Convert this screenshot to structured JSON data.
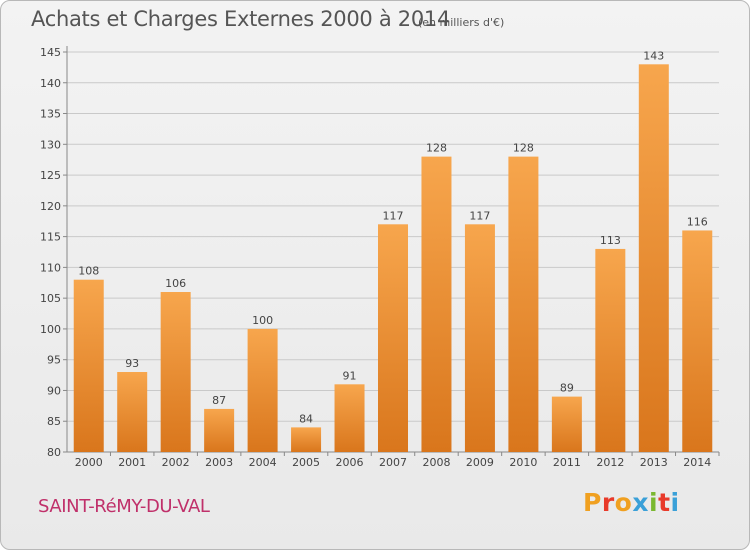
{
  "header": {
    "title": "Achats et Charges Externes 2000 à 2014",
    "subtitle": "(en milliers d'€)"
  },
  "footer": {
    "commune": "SAINT-RéMY-DU-VAL",
    "logo_text": "Proxiti",
    "logo_colors": [
      "#f0a020",
      "#e83a2a",
      "#f0a020",
      "#3aa0d8",
      "#7ab830",
      "#e83a2a",
      "#3aa0d8"
    ]
  },
  "chart_data": {
    "type": "bar",
    "title": "Achats et Charges Externes 2000 à 2014",
    "subtitle": "(en milliers d'€)",
    "xlabel": "",
    "ylabel": "",
    "categories": [
      "2000",
      "2001",
      "2002",
      "2003",
      "2004",
      "2005",
      "2006",
      "2007",
      "2008",
      "2009",
      "2010",
      "2011",
      "2012",
      "2013",
      "2014"
    ],
    "values": [
      108,
      93,
      106,
      87,
      100,
      84,
      91,
      117,
      128,
      117,
      128,
      89,
      113,
      143,
      116
    ],
    "ylim": [
      80,
      145
    ],
    "yticks": [
      80,
      85,
      90,
      95,
      100,
      105,
      110,
      115,
      120,
      125,
      130,
      135,
      140,
      145
    ],
    "grid": true,
    "colors": {
      "bar_top": "#f7a64d",
      "bar_bottom": "#d9761c",
      "grid": "#c9c9c9"
    }
  }
}
